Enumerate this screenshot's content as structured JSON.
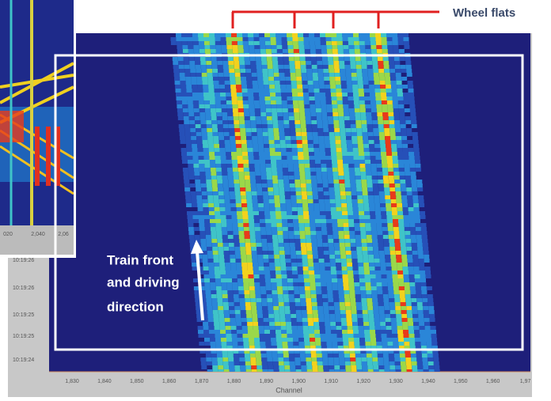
{
  "annotations": {
    "wheel_flats": "Wheel flats",
    "train_front": [
      "Train front",
      "and driving",
      "direction"
    ]
  },
  "x_axis": {
    "label": "Channel",
    "ticks": [
      "1,830",
      "1,840",
      "1,850",
      "1,860",
      "1,870",
      "1,880",
      "1,890",
      "1,900",
      "1,910",
      "1,920",
      "1,930",
      "1,940",
      "1,950",
      "1,960",
      "1,97"
    ]
  },
  "y_axis": {
    "ticks": [
      "10:19:26",
      "10:19:26",
      "10:19:25",
      "10:19:25",
      "10:19:24"
    ]
  },
  "inset": {
    "x_ticks": [
      "020",
      "2,040",
      "2,06"
    ]
  }
}
